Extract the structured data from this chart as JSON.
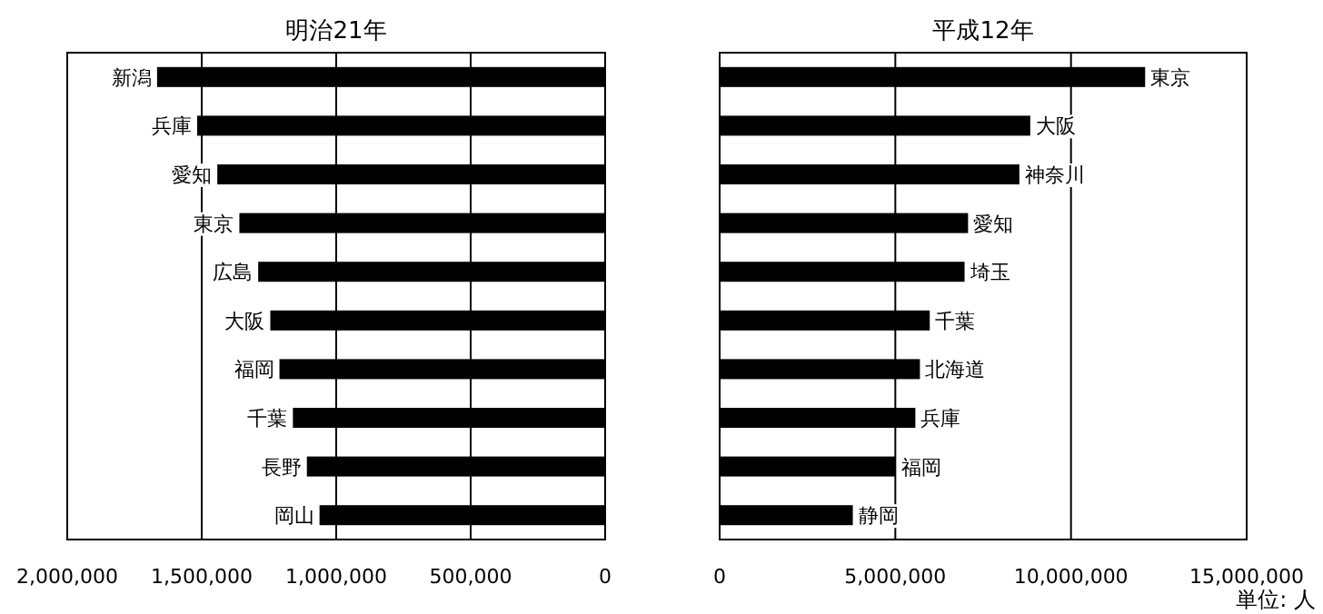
{
  "chart_data": [
    {
      "type": "bar",
      "orientation": "horizontal",
      "title": "明治21年",
      "categories": [
        "新潟",
        "兵庫",
        "愛知",
        "東京",
        "広島",
        "大阪",
        "福岡",
        "千葉",
        "長野",
        "岡山"
      ],
      "series": [
        {
          "color": "#000000",
          "values": [
            1666000,
            1517000,
            1442000,
            1360000,
            1290000,
            1245000,
            1211000,
            1161000,
            1109000,
            1062000
          ]
        }
      ],
      "xlim": [
        2000000,
        0
      ],
      "xticks": [
        {
          "value": 2000000,
          "label": "2,000,000"
        },
        {
          "value": 1500000,
          "label": "1,500,000"
        },
        {
          "value": 1000000,
          "label": "1,000,000"
        },
        {
          "value": 500000,
          "label": "500,000"
        },
        0
      ],
      "grid": "x"
    },
    {
      "type": "bar",
      "orientation": "horizontal",
      "title": "平成12年",
      "categories": [
        "東京",
        "大阪",
        "神奈川",
        "愛知",
        "埼玉",
        "千葉",
        "北海道",
        "兵庫",
        "福岡",
        "静岡"
      ],
      "series": [
        {
          "color": "#000000",
          "values": [
            12110000,
            8840000,
            8530000,
            7070000,
            6970000,
            5980000,
            5700000,
            5570000,
            5010000,
            3790000
          ]
        }
      ],
      "xlim": [
        0,
        15000000
      ],
      "xticks": [
        0,
        {
          "value": 5000000,
          "label": "5,000,000"
        },
        {
          "value": 10000000,
          "label": "10,000,000"
        },
        {
          "value": 15000000,
          "label": "15,000,000"
        }
      ],
      "grid": "x",
      "annotations": [
        "単位: 人"
      ]
    }
  ]
}
